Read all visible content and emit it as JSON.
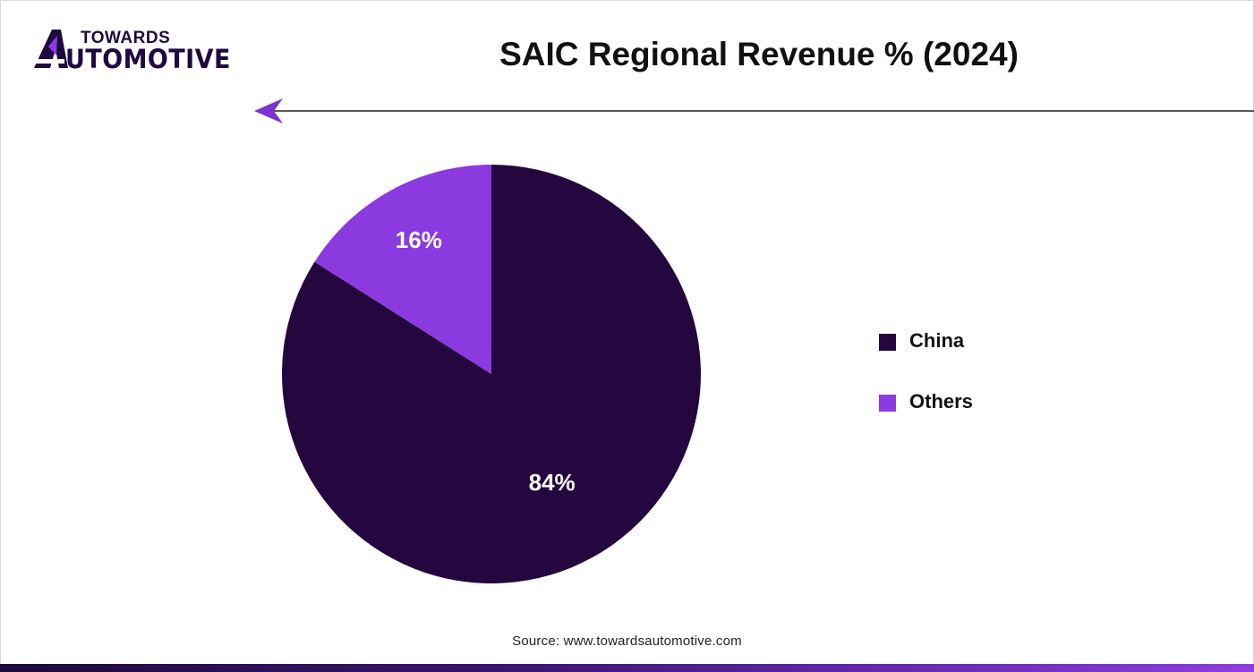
{
  "brand": {
    "line1": "TOWARDS",
    "line2": "UTOMOTIVE",
    "logo_icon": "a-logo-mark-icon"
  },
  "colors": {
    "china": "#25073f",
    "others": "#8b3ae0",
    "accent": "#7a32d0",
    "text": "#111111"
  },
  "chart_data": {
    "type": "pie",
    "title": "SAIC Regional Revenue % (2024)",
    "slices": [
      {
        "label": "China",
        "value": 84,
        "display": "84%",
        "color": "#25073f"
      },
      {
        "label": "Others",
        "value": 16,
        "display": "16%",
        "color": "#8b3ae0"
      }
    ],
    "legend_position": "right"
  },
  "source": "Source: www.towardsautomotive.com"
}
